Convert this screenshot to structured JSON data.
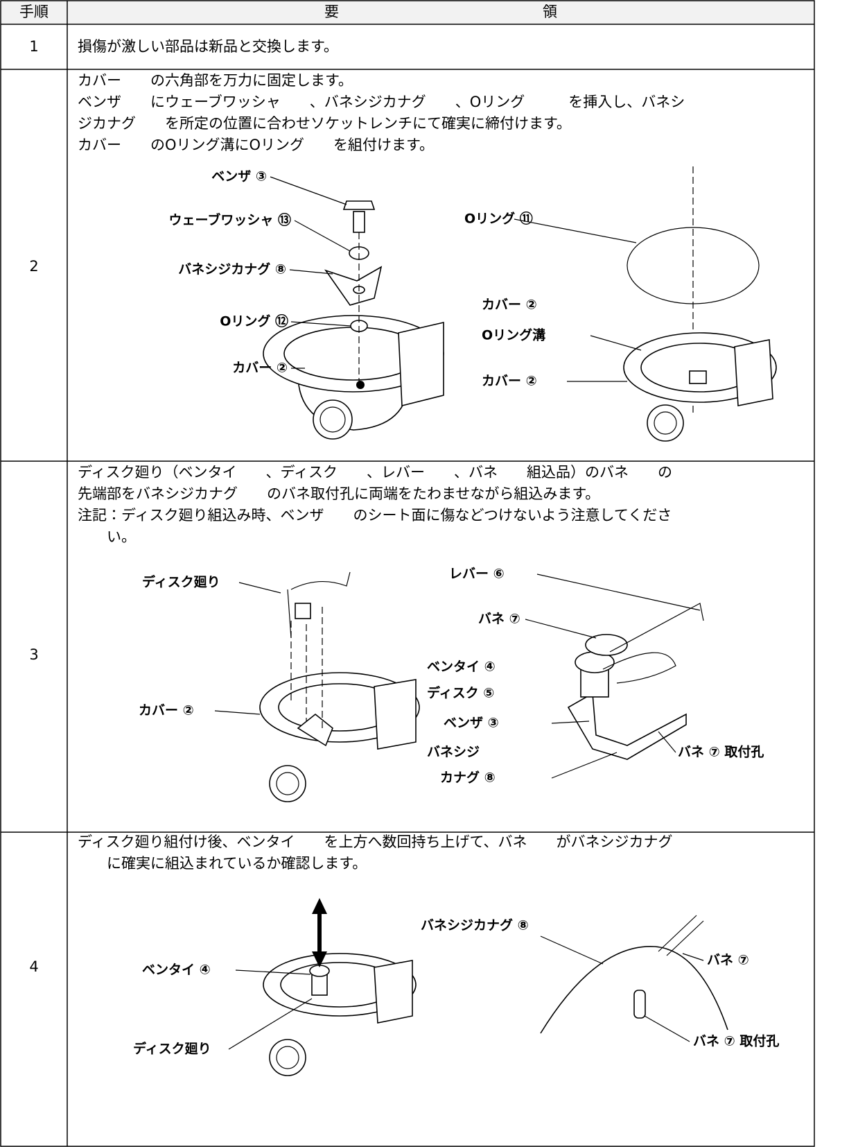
{
  "table": {
    "header": {
      "step": "手順",
      "procedure": "要　　　　　　　　　　　　　　領"
    },
    "rows": [
      {
        "step": "1",
        "lines": [
          "損傷が激しい部品は新品と交換します。"
        ]
      },
      {
        "step": "2",
        "lines": [
          "カバー　　の六角部を万力に固定します。",
          "ベンザ　　にウェーブワッシャ　　、バネシジカナグ　　、Oリング　　　を挿入し、バネシ",
          "ジカナグ　　を所定の位置に合わせソケットレンチにて確実に締付けます。",
          "カバー　　のOリング溝にOリング　　を組付けます。"
        ],
        "figure_labels": [
          "ベンザ ③",
          "ウェーブワッシャ ⑬",
          "バネシジカナグ ⑧",
          "Oリング ⑫",
          "カバー ②",
          "Oリング ⑪",
          "カバー ②",
          "Oリング溝",
          "カバー ②"
        ]
      },
      {
        "step": "3",
        "lines": [
          "ディスク廻り（ベンタイ　　、ディスク　　、レバー　　、バネ　　組込品）のバネ　　の",
          "先端部をバネシジカナグ　　のバネ取付孔に両端をたわませながら組込みます。",
          "注記：ディスク廻り組込み時、ベンザ　　のシート面に傷などつけないよう注意してくださ",
          "　　い。"
        ],
        "figure_labels": [
          "ディスク廻り",
          "カバー ②",
          "レバー ⑥",
          "バネ ⑦",
          "ベンタイ ④",
          "ディスク ⑤",
          "ベンザ ③",
          "バネシジ",
          "カナグ ⑧",
          "バネ ⑦ 取付孔"
        ]
      },
      {
        "step": "4",
        "lines": [
          "ディスク廻り組付け後、ベンタイ　　を上方へ数回持ち上げて、バネ　　がバネシジカナグ",
          "　　に確実に組込まれているか確認します。"
        ],
        "figure_labels": [
          "ベンタイ ④",
          "ディスク廻り",
          "バネシジカナグ ⑧",
          "バネ ⑦",
          "バネ ⑦ 取付孔"
        ]
      }
    ]
  }
}
